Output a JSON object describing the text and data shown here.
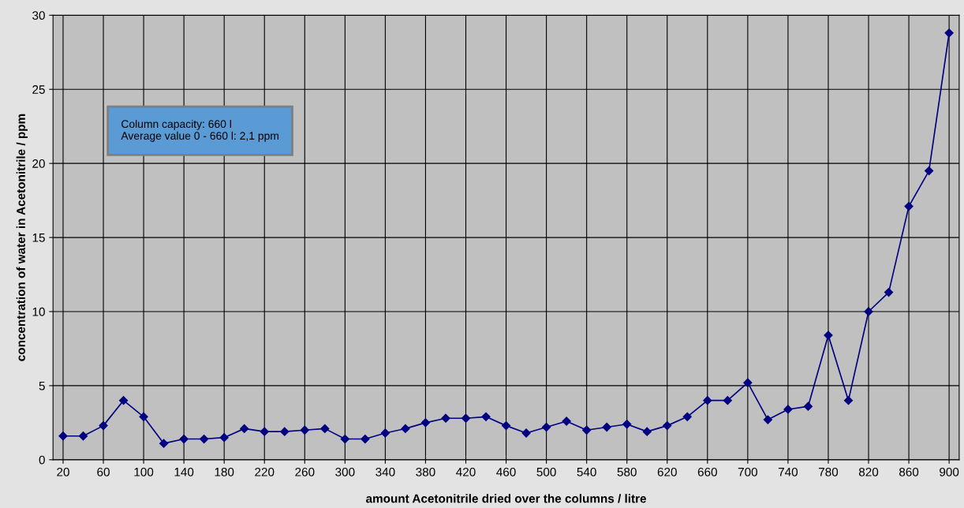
{
  "chart_data": {
    "type": "line",
    "xlabel": "amount Acetonitrile dried over the columns / litre",
    "ylabel": "concentration of water in Acetonitrile / ppm",
    "x": [
      20,
      40,
      60,
      80,
      100,
      120,
      140,
      160,
      180,
      200,
      220,
      240,
      260,
      280,
      300,
      320,
      340,
      360,
      380,
      400,
      420,
      440,
      460,
      480,
      500,
      520,
      540,
      560,
      580,
      600,
      620,
      640,
      660,
      680,
      700,
      720,
      740,
      760,
      780,
      800,
      820,
      840,
      860,
      880,
      900
    ],
    "series": [
      {
        "color": "#000080",
        "values": [
          1.6,
          1.6,
          2.3,
          4.0,
          2.9,
          1.1,
          1.4,
          1.4,
          1.5,
          2.1,
          1.9,
          1.9,
          2.0,
          2.1,
          1.4,
          1.4,
          1.8,
          2.1,
          2.5,
          2.8,
          2.8,
          2.9,
          2.3,
          1.8,
          2.2,
          2.6,
          2.0,
          2.2,
          2.4,
          1.9,
          2.3,
          2.9,
          4.0,
          4.0,
          5.2,
          2.7,
          3.4,
          3.6,
          8.4,
          4.0,
          10.0,
          11.3,
          17.1,
          19.5,
          28.8
        ]
      }
    ],
    "xlim": [
      10,
      910
    ],
    "xticks": [
      20,
      60,
      100,
      140,
      180,
      220,
      260,
      300,
      340,
      380,
      420,
      460,
      500,
      540,
      580,
      620,
      660,
      700,
      740,
      780,
      820,
      860,
      900
    ],
    "ylim": [
      0,
      30
    ],
    "yticks": [
      0,
      5,
      10,
      15,
      20,
      25,
      30
    ],
    "grid": true,
    "marker": "diamond",
    "line_style": "solid",
    "annotations": [
      "Column capacity: 660 l\nAverage value 0 - 660 l: 2,1 ppm"
    ]
  }
}
